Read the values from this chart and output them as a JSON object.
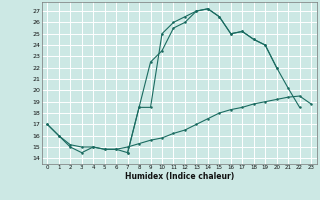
{
  "xlabel": "Humidex (Indice chaleur)",
  "bg_color": "#cce8e4",
  "line_color": "#1a6b60",
  "grid_color": "#ffffff",
  "xlim": [
    -0.5,
    23.5
  ],
  "ylim": [
    13.5,
    27.8
  ],
  "xticks": [
    0,
    1,
    2,
    3,
    4,
    5,
    6,
    7,
    8,
    9,
    10,
    11,
    12,
    13,
    14,
    15,
    16,
    17,
    18,
    19,
    20,
    21,
    22,
    23
  ],
  "yticks": [
    14,
    15,
    16,
    17,
    18,
    19,
    20,
    21,
    22,
    23,
    24,
    25,
    26,
    27
  ],
  "line1_x": [
    0,
    1,
    2,
    3,
    4,
    5,
    6,
    7,
    8,
    9,
    10,
    11,
    12,
    13,
    14,
    15,
    16,
    17,
    18,
    19,
    20,
    21,
    22
  ],
  "line1_y": [
    17,
    16,
    15,
    14.5,
    15,
    14.8,
    14.8,
    14.5,
    18.5,
    18.5,
    25.0,
    26.0,
    26.5,
    27.0,
    27.2,
    26.5,
    25.0,
    25.2,
    24.5,
    24.0,
    22.0,
    20.2,
    18.5
  ],
  "line2_x": [
    7,
    8,
    9,
    10,
    11,
    12,
    13,
    14,
    15,
    16,
    17,
    18,
    19,
    20
  ],
  "line2_y": [
    14.5,
    18.5,
    22.5,
    23.5,
    25.5,
    26.0,
    27.0,
    27.2,
    26.5,
    25.0,
    25.2,
    24.5,
    24.0,
    22.0
  ],
  "line3_x": [
    0,
    1,
    2,
    3,
    4,
    5,
    6,
    7,
    8,
    9,
    10,
    11,
    12,
    13,
    14,
    15,
    16,
    17,
    18,
    19,
    20,
    21,
    22,
    23
  ],
  "line3_y": [
    17.0,
    16.0,
    15.2,
    15.0,
    15.0,
    14.8,
    14.8,
    15.0,
    15.3,
    15.6,
    15.8,
    16.2,
    16.5,
    17.0,
    17.5,
    18.0,
    18.3,
    18.5,
    18.8,
    19.0,
    19.2,
    19.4,
    19.5,
    18.8
  ]
}
